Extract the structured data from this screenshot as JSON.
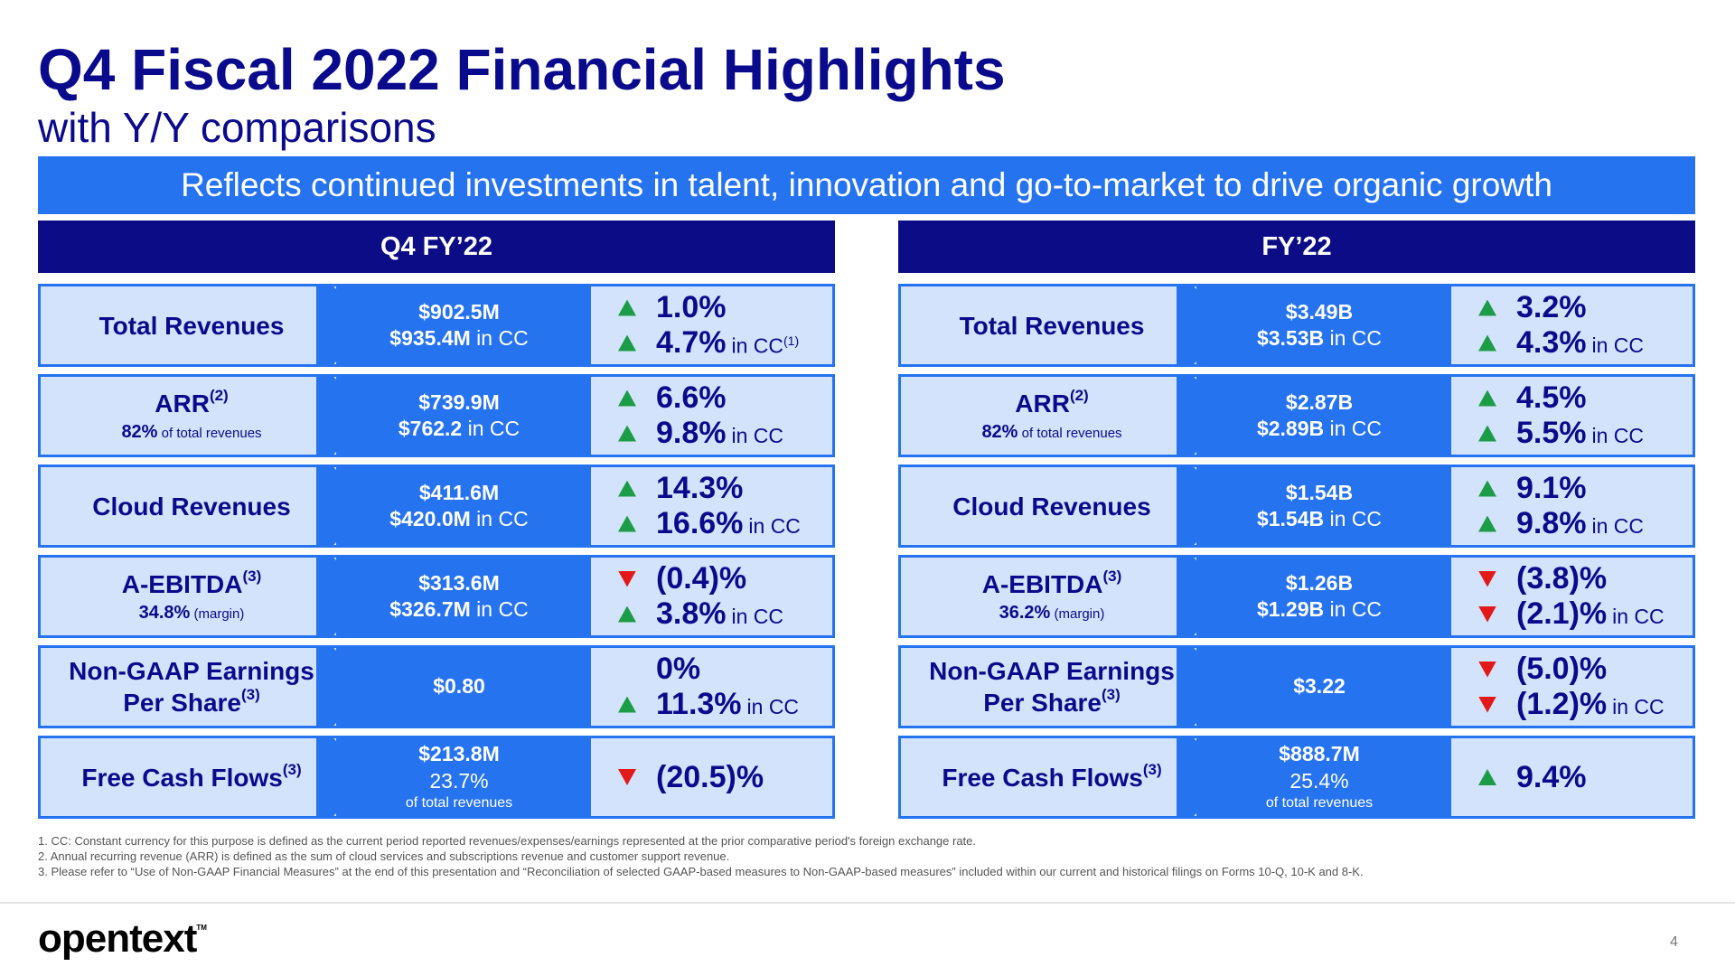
{
  "title": "Q4 Fiscal 2022 Financial Highlights",
  "subtitle": "with Y/Y comparisons",
  "banner": "Reflects continued investments in talent, innovation and go-to-market to drive organic growth",
  "colors": {
    "navy": "#0c0c86",
    "blue": "#2673f0",
    "light": "#d3e3fb",
    "up": "#1c9c46",
    "down": "#e31919"
  },
  "panels": [
    {
      "header": "Q4 FY’22",
      "rows": [
        {
          "metric": "Total Revenues",
          "sup": "",
          "note_value": "",
          "note_label": "",
          "value1": "$902.5M",
          "value2_bold": "$935.4M",
          "value2_suffix": " in CC",
          "value3": "",
          "chg1_dir": "up",
          "chg1": "1.0%",
          "chg1_suffix": "",
          "chg2_dir": "up",
          "chg2": "4.7%",
          "chg2_suffix": " in CC",
          "chg2_sup": "(1)"
        },
        {
          "metric": "ARR",
          "sup": "(2)",
          "note_value": "82%",
          "note_label": " of total revenues",
          "value1": "$739.9M",
          "value2_bold": "$762.2",
          "value2_suffix": " in CC",
          "value3": "",
          "chg1_dir": "up",
          "chg1": "6.6%",
          "chg1_suffix": "",
          "chg2_dir": "up",
          "chg2": "9.8%",
          "chg2_suffix": " in CC",
          "chg2_sup": ""
        },
        {
          "metric": "Cloud Revenues",
          "sup": "",
          "note_value": "",
          "note_label": "",
          "value1": "$411.6M",
          "value2_bold": "$420.0M",
          "value2_suffix": " in CC",
          "value3": "",
          "chg1_dir": "up",
          "chg1": "14.3%",
          "chg1_suffix": "",
          "chg2_dir": "up",
          "chg2": "16.6%",
          "chg2_suffix": " in CC",
          "chg2_sup": ""
        },
        {
          "metric": "A-EBITDA",
          "sup": "(3)",
          "note_value": "34.8%",
          "note_label": " (margin)",
          "value1": "$313.6M",
          "value2_bold": "$326.7M",
          "value2_suffix": " in CC",
          "value3": "",
          "chg1_dir": "down",
          "chg1": "(0.4)%",
          "chg1_suffix": "",
          "chg2_dir": "up",
          "chg2": "3.8%",
          "chg2_suffix": " in CC",
          "chg2_sup": ""
        },
        {
          "metric": "Non-GAAP Earnings",
          "metric2": "Per Share",
          "sup": "(3)",
          "note_value": "",
          "note_label": "",
          "value1": "$0.80",
          "value2_bold": "",
          "value2_suffix": "",
          "value3": "",
          "chg1_dir": "none",
          "chg1": "0%",
          "chg1_suffix": "",
          "chg2_dir": "up",
          "chg2": "11.3%",
          "chg2_suffix": " in CC",
          "chg2_sup": ""
        },
        {
          "metric": "Free Cash Flows",
          "sup": "(3)",
          "note_value": "",
          "note_label": "",
          "value1": "$213.8M",
          "value2_bold": "",
          "value2_suffix": "23.7%",
          "value3": "of total revenues",
          "chg1_dir": "down",
          "chg1": "(20.5)%",
          "chg1_suffix": "",
          "chg2_dir": "",
          "chg2": "",
          "chg2_suffix": "",
          "chg2_sup": ""
        }
      ]
    },
    {
      "header": "FY’22",
      "rows": [
        {
          "metric": "Total Revenues",
          "sup": "",
          "note_value": "",
          "note_label": "",
          "value1": "$3.49B",
          "value2_bold": "$3.53B",
          "value2_suffix": " in CC",
          "value3": "",
          "chg1_dir": "up",
          "chg1": "3.2%",
          "chg1_suffix": "",
          "chg2_dir": "up",
          "chg2": "4.3%",
          "chg2_suffix": " in CC",
          "chg2_sup": ""
        },
        {
          "metric": "ARR",
          "sup": "(2)",
          "note_value": "82%",
          "note_label": " of total revenues",
          "value1": "$2.87B",
          "value2_bold": "$2.89B",
          "value2_suffix": " in CC",
          "value3": "",
          "chg1_dir": "up",
          "chg1": "4.5%",
          "chg1_suffix": "",
          "chg2_dir": "up",
          "chg2": "5.5%",
          "chg2_suffix": " in CC",
          "chg2_sup": ""
        },
        {
          "metric": "Cloud Revenues",
          "sup": "",
          "note_value": "",
          "note_label": "",
          "value1": "$1.54B",
          "value2_bold": "$1.54B",
          "value2_suffix": " in CC",
          "value3": "",
          "chg1_dir": "up",
          "chg1": "9.1%",
          "chg1_suffix": "",
          "chg2_dir": "up",
          "chg2": "9.8%",
          "chg2_suffix": " in CC",
          "chg2_sup": ""
        },
        {
          "metric": "A-EBITDA",
          "sup": "(3)",
          "note_value": "36.2%",
          "note_label": " (margin)",
          "value1": "$1.26B",
          "value2_bold": "$1.29B",
          "value2_suffix": " in CC",
          "value3": "",
          "chg1_dir": "down",
          "chg1": "(3.8)%",
          "chg1_suffix": "",
          "chg2_dir": "down",
          "chg2": "(2.1)%",
          "chg2_suffix": " in CC",
          "chg2_sup": ""
        },
        {
          "metric": "Non-GAAP Earnings",
          "metric2": "Per Share",
          "sup": "(3)",
          "note_value": "",
          "note_label": "",
          "value1": "$3.22",
          "value2_bold": "",
          "value2_suffix": "",
          "value3": "",
          "chg1_dir": "down",
          "chg1": "(5.0)%",
          "chg1_suffix": "",
          "chg2_dir": "down",
          "chg2": "(1.2)%",
          "chg2_suffix": " in CC",
          "chg2_sup": ""
        },
        {
          "metric": "Free Cash Flows",
          "sup": "(3)",
          "note_value": "",
          "note_label": "",
          "value1": "$888.7M",
          "value2_bold": "",
          "value2_suffix": "25.4%",
          "value3": "of total revenues",
          "chg1_dir": "up",
          "chg1": "9.4%",
          "chg1_suffix": "",
          "chg2_dir": "",
          "chg2": "",
          "chg2_suffix": "",
          "chg2_sup": ""
        }
      ]
    }
  ],
  "footnotes": [
    "1.  CC: Constant currency for this purpose is defined as the current period reported revenues/expenses/earnings represented at the prior comparative period's foreign exchange rate.",
    "2.  Annual recurring revenue (ARR) is defined as the sum of cloud services and subscriptions revenue and customer support revenue.",
    "3.  Please refer to “Use of Non-GAAP Financial Measures” at the end of this presentation and “Reconciliation of selected GAAP-based measures to Non-GAAP-based measures” included within our current and historical filings on Forms 10-Q, 10-K and 8-K."
  ],
  "logo": "opentext",
  "logo_tm": "TM",
  "page_number": "4"
}
